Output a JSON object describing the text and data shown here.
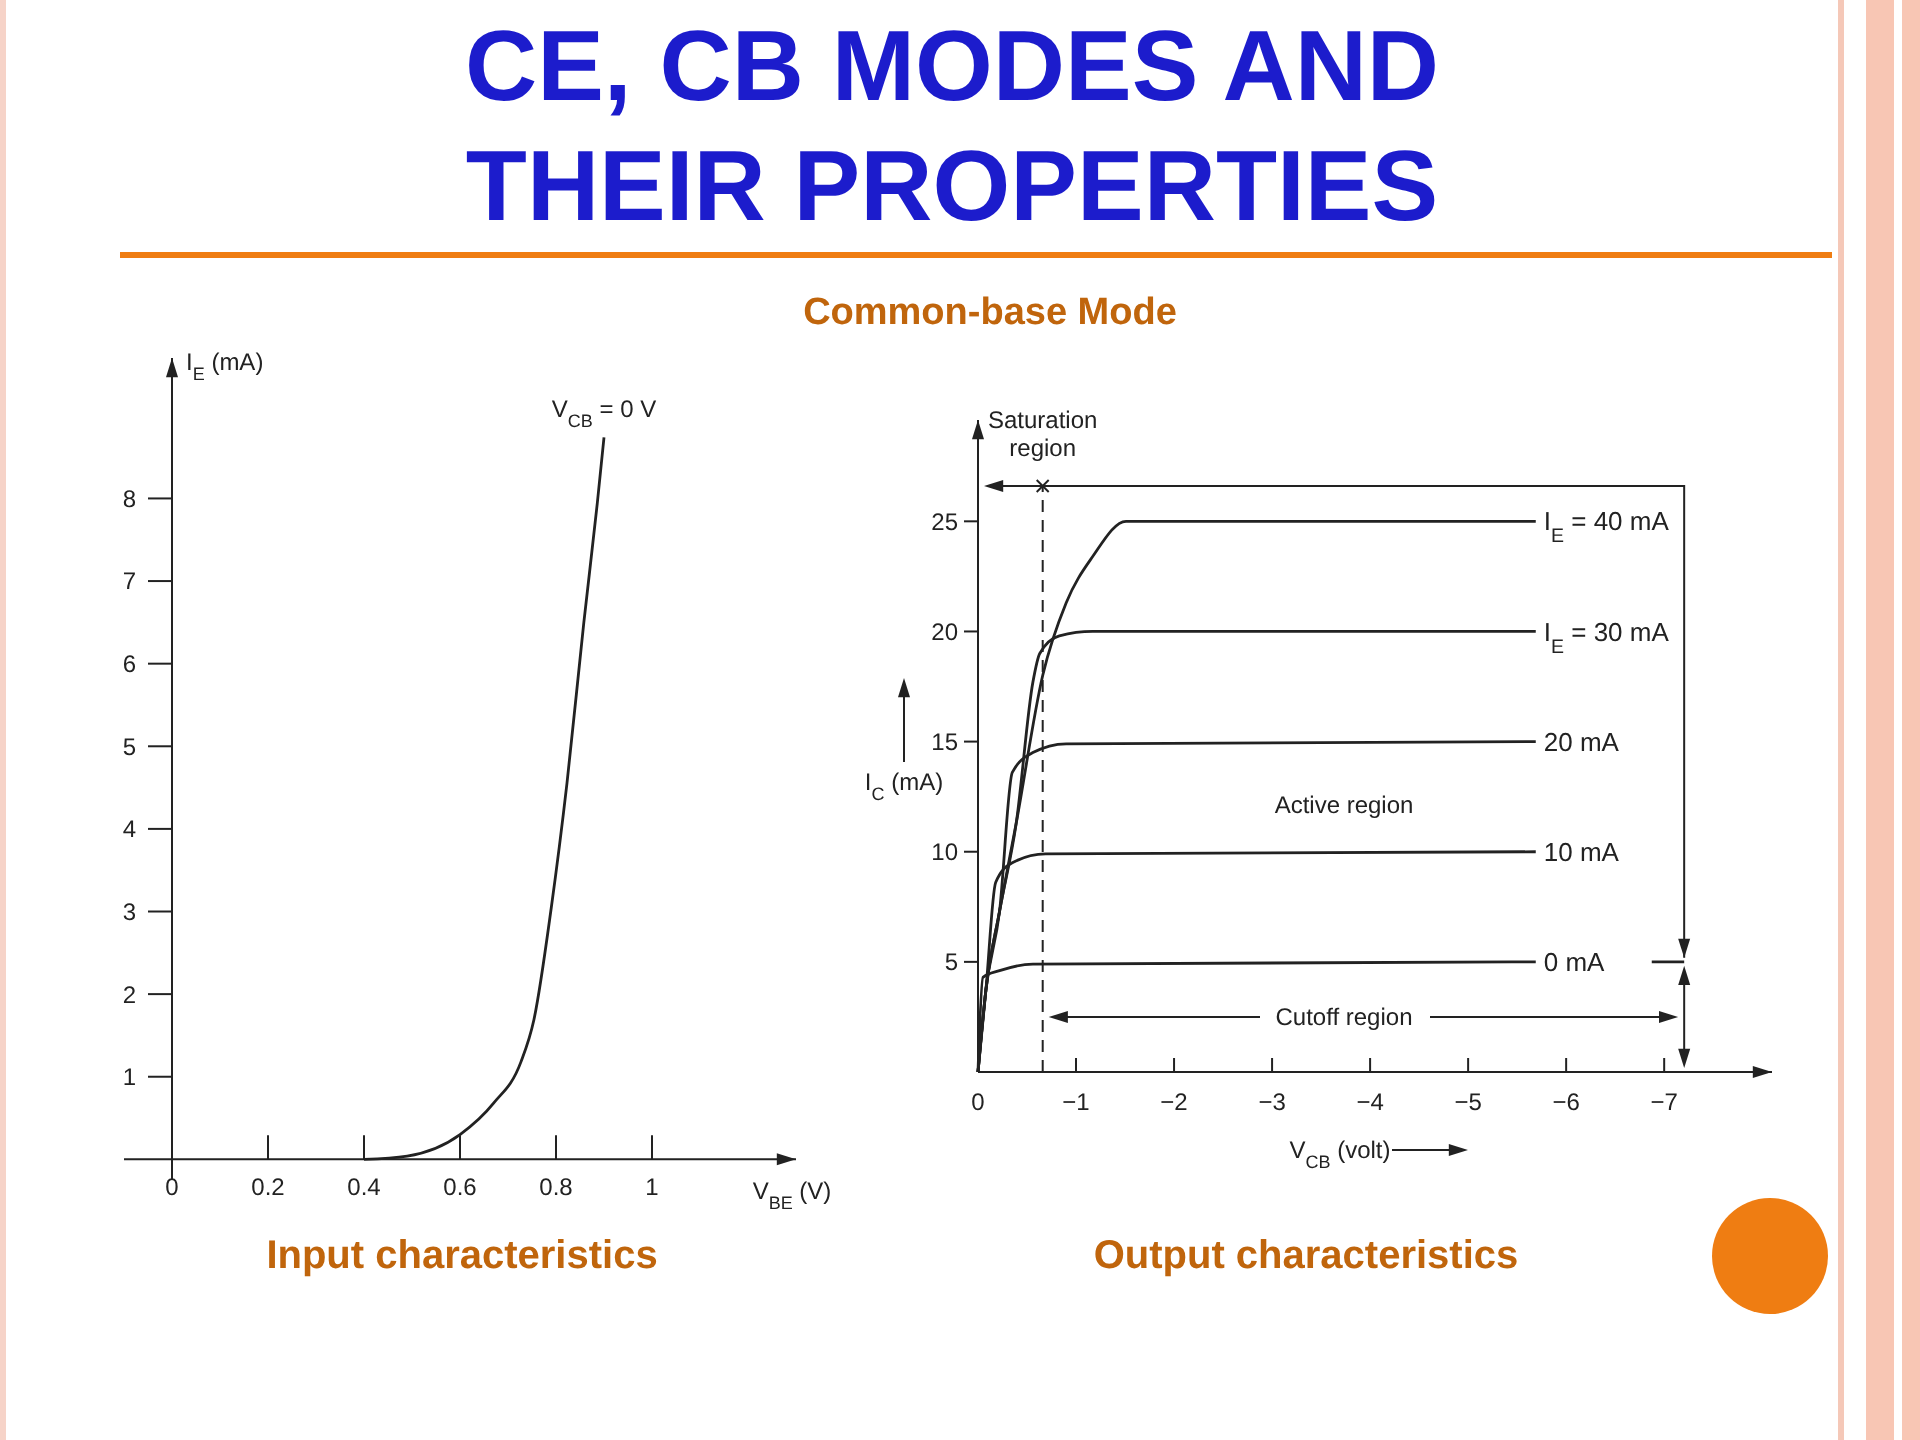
{
  "chart_data": [
    {
      "type": "line",
      "title": "CE, CB MODES AND THEIR PROPERTIES",
      "subtitle": "Common-base Mode",
      "xlabel": "V$_{BE}$ (V)",
      "ylabel": "I$_{E}$ (mA)",
      "annotations": [
        "Input characteristics"
      ],
      "xlim": [
        -0.1,
        1.3
      ],
      "ylim": [
        -0.25,
        9.7
      ],
      "xticks": [
        0,
        0.2,
        0.4,
        0.6,
        0.8,
        1
      ],
      "yticks": [
        1,
        2,
        3,
        4,
        5,
        6,
        7,
        8
      ],
      "series": [
        {
          "name": "V$_{CB}$ = 0 V",
          "color": "#222222",
          "x": [
            0.4,
            0.49,
            0.6,
            0.67,
            0.727,
            0.754,
            0.79,
            0.823,
            0.858,
            0.886,
            0.9
          ],
          "values": [
            0,
            0.04,
            0.3,
            0.68,
            1.18,
            1.69,
            3.04,
            4.56,
            6.5,
            7.94,
            8.74
          ]
        }
      ]
    },
    {
      "type": "line",
      "xlabel": "V$_{CB}$ (volt)",
      "ylabel": "I$_{C}$ (mA)",
      "annotations": [
        "Active region",
        "Cutoff region",
        "Output characteristics"
      ],
      "xlim": [
        0,
        -8.1
      ],
      "ylim": [
        0,
        29.6
      ],
      "xticks": [
        0,
        {
          "value": -1,
          "label": "−1"
        },
        {
          "value": -2,
          "label": "−2"
        },
        {
          "value": -3,
          "label": "−3"
        },
        {
          "value": -4,
          "label": "−4"
        },
        {
          "value": -5,
          "label": "−5"
        },
        {
          "value": -6,
          "label": "−6"
        },
        {
          "value": -7,
          "label": "−7"
        }
      ],
      "yticks": [
        5,
        10,
        15,
        20,
        25
      ],
      "ref_lines": [
        {
          "axis": "x",
          "value": -0.66,
          "label": "Saturation region",
          "line_style": "dashed"
        }
      ],
      "series": [
        {
          "name": "I$_{E}$ = 40 mA",
          "color": "#222222",
          "x": [
            0,
            -0.08,
            -0.22,
            -0.39,
            -0.66,
            -0.9,
            -1.17,
            -1.51,
            -5.69
          ],
          "values": [
            0,
            3.7,
            7.3,
            11.3,
            18.0,
            21.3,
            23.4,
            25,
            25
          ]
        },
        {
          "name": "I$_{E}$ = 30 mA",
          "color": "#222222",
          "x": [
            0,
            -0.08,
            -0.22,
            -0.39,
            -0.56,
            -0.63,
            -0.83,
            -1.17,
            -5.69
          ],
          "values": [
            0,
            3.7,
            7.3,
            11.3,
            17.7,
            19.0,
            19.8,
            20,
            20
          ]
        },
        {
          "name": "20 mA",
          "color": "#222222",
          "x": [
            0,
            -0.08,
            -0.22,
            -0.35,
            -0.56,
            -0.9,
            -5.69
          ],
          "values": [
            0,
            3.7,
            7.3,
            13.6,
            14.5,
            14.9,
            15
          ]
        },
        {
          "name": "10 mA",
          "color": "#222222",
          "x": [
            0,
            -0.08,
            -0.18,
            -0.35,
            -0.69,
            -5.69
          ],
          "values": [
            0,
            3.7,
            8.6,
            9.5,
            9.9,
            10
          ]
        },
        {
          "name": "0 mA",
          "color": "#222222",
          "x": [
            0,
            -0.05,
            -0.22,
            -0.56,
            -5.69
          ],
          "values": [
            0,
            4.3,
            4.6,
            4.9,
            5
          ]
        }
      ]
    }
  ]
}
